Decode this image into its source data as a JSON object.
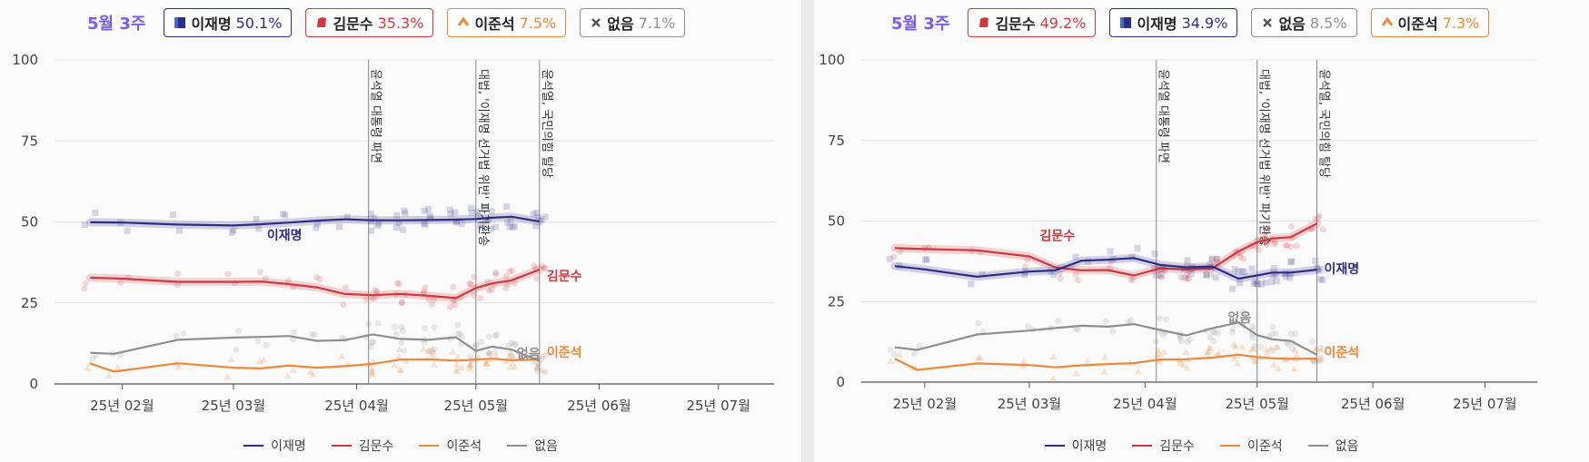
{
  "colors": {
    "lee": "#2b2e86",
    "kim": "#d2373e",
    "lee_js": "#ee8838",
    "none": "#8f8f8f",
    "week": "#7a5cf0"
  },
  "legend": [
    {
      "label": "이재명",
      "key": "lee"
    },
    {
      "label": "김문수",
      "key": "kim"
    },
    {
      "label": "이준석",
      "key": "lee_js"
    },
    {
      "label": "없음",
      "key": "none"
    }
  ],
  "panels": [
    {
      "week_label": "5월 3주",
      "badges": [
        {
          "name": "이재명",
          "value": "50.1%",
          "key": "lee",
          "icon": "lee-party-icon"
        },
        {
          "name": "김문수",
          "value": "35.3%",
          "key": "kim",
          "icon": "kim-party-icon"
        },
        {
          "name": "이준석",
          "value": "7.5%",
          "key": "lee_js",
          "icon": "reform-party-icon"
        },
        {
          "name": "없음",
          "value": "7.1%",
          "key": "none",
          "icon": "none-cross-icon"
        }
      ]
    },
    {
      "week_label": "5월 3주",
      "badges": [
        {
          "name": "김문수",
          "value": "49.2%",
          "key": "kim",
          "icon": "kim-party-icon"
        },
        {
          "name": "이재명",
          "value": "34.9%",
          "key": "lee",
          "icon": "lee-party-icon"
        },
        {
          "name": "없음",
          "value": "8.5%",
          "key": "none",
          "icon": "none-cross-icon"
        },
        {
          "name": "이준석",
          "value": "7.3%",
          "key": "lee_js",
          "icon": "reform-party-icon"
        }
      ]
    }
  ],
  "chart_data": [
    {
      "type": "line",
      "x_range": [
        "2025-01-15",
        "2025-07-15"
      ],
      "x_ticks": [
        {
          "date": "2025-02-01",
          "label": "25년 02월"
        },
        {
          "date": "2025-03-01",
          "label": "25년 03월"
        },
        {
          "date": "2025-04-01",
          "label": "25년 04월"
        },
        {
          "date": "2025-05-01",
          "label": "25년 05월"
        },
        {
          "date": "2025-06-01",
          "label": "25년 06월"
        },
        {
          "date": "2025-07-01",
          "label": "25년 07월"
        }
      ],
      "y_ticks": [
        0,
        25,
        50,
        75,
        100
      ],
      "ylim": [
        0,
        100
      ],
      "grid": true,
      "legend_position": "bottom",
      "events": [
        {
          "date": "2025-04-04",
          "label": "윤석열 대통령 파면"
        },
        {
          "date": "2025-05-01",
          "label": "대법, '이재명 선거법 위반' 파기환송"
        },
        {
          "date": "2025-05-17",
          "label": "윤석열, 국민의힘 탈당"
        }
      ],
      "series": [
        {
          "name": "이재명",
          "key": "lee",
          "end_label": "이재명",
          "dates": [
            "2025-01-24",
            "2025-02-01",
            "2025-02-15",
            "2025-03-01",
            "2025-03-08",
            "2025-03-15",
            "2025-03-22",
            "2025-03-29",
            "2025-04-05",
            "2025-04-12",
            "2025-04-19",
            "2025-04-26",
            "2025-05-01",
            "2025-05-05",
            "2025-05-10",
            "2025-05-17"
          ],
          "values": [
            49.9,
            49.8,
            49.2,
            48.9,
            49.3,
            49.8,
            50.4,
            50.8,
            50.5,
            50.5,
            50.6,
            50.7,
            50.9,
            51.3,
            51.6,
            50.1
          ]
        },
        {
          "name": "김문수",
          "key": "kim",
          "end_label": "김문수",
          "dates": [
            "2025-01-24",
            "2025-02-01",
            "2025-02-15",
            "2025-03-01",
            "2025-03-08",
            "2025-03-15",
            "2025-03-22",
            "2025-03-29",
            "2025-04-05",
            "2025-04-12",
            "2025-04-19",
            "2025-04-26",
            "2025-05-01",
            "2025-05-05",
            "2025-05-10",
            "2025-05-17"
          ],
          "values": [
            32.8,
            32.5,
            31.5,
            31.5,
            31.6,
            30.8,
            29.8,
            27.8,
            27.4,
            27.8,
            27.2,
            26.5,
            29.6,
            31.0,
            32.0,
            35.3
          ]
        },
        {
          "name": "이준석",
          "key": "lee_js",
          "end_label": "이준석",
          "dates": [
            "2025-01-24",
            "2025-01-30",
            "2025-02-15",
            "2025-03-01",
            "2025-03-08",
            "2025-03-15",
            "2025-03-22",
            "2025-03-29",
            "2025-04-05",
            "2025-04-12",
            "2025-04-19",
            "2025-04-26",
            "2025-05-01",
            "2025-05-05",
            "2025-05-10",
            "2025-05-17"
          ],
          "values": [
            6.3,
            3.8,
            6.4,
            5.0,
            4.8,
            5.7,
            5.0,
            5.5,
            6.2,
            7.5,
            7.6,
            7.2,
            7.5,
            7.8,
            7.3,
            7.5
          ]
        },
        {
          "name": "없음",
          "key": "none",
          "end_label": "없음",
          "dates": [
            "2025-01-24",
            "2025-01-30",
            "2025-02-15",
            "2025-03-01",
            "2025-03-08",
            "2025-03-15",
            "2025-03-22",
            "2025-03-29",
            "2025-04-05",
            "2025-04-12",
            "2025-04-19",
            "2025-04-26",
            "2025-05-01",
            "2025-05-05",
            "2025-05-10",
            "2025-05-17"
          ],
          "values": [
            9.6,
            9.3,
            13.6,
            14.3,
            14.5,
            14.8,
            13.3,
            13.5,
            15.3,
            13.9,
            13.6,
            14.4,
            10.2,
            11.5,
            10.6,
            7.1
          ]
        }
      ]
    },
    {
      "type": "line",
      "x_range": [
        "2025-01-15",
        "2025-07-15"
      ],
      "x_ticks": [
        {
          "date": "2025-02-01",
          "label": "25년 02월"
        },
        {
          "date": "2025-03-01",
          "label": "25년 03월"
        },
        {
          "date": "2025-04-01",
          "label": "25년 04월"
        },
        {
          "date": "2025-05-01",
          "label": "25년 05월"
        },
        {
          "date": "2025-06-01",
          "label": "25년 06월"
        },
        {
          "date": "2025-07-01",
          "label": "25년 07월"
        }
      ],
      "y_ticks": [
        0,
        25,
        50,
        75,
        100
      ],
      "ylim": [
        0,
        100
      ],
      "grid": true,
      "legend_position": "bottom",
      "events": [
        {
          "date": "2025-04-04",
          "label": "윤석열 대통령 파면"
        },
        {
          "date": "2025-05-01",
          "label": "대법, '이재명 선거법 위반' 파기환송"
        },
        {
          "date": "2025-05-17",
          "label": "윤석열, 국민의힘 탈당"
        }
      ],
      "series": [
        {
          "name": "김문수",
          "key": "kim",
          "end_label": "김문수",
          "dates": [
            "2025-01-24",
            "2025-02-01",
            "2025-02-15",
            "2025-03-01",
            "2025-03-08",
            "2025-03-15",
            "2025-03-22",
            "2025-03-29",
            "2025-04-05",
            "2025-04-12",
            "2025-04-19",
            "2025-04-26",
            "2025-05-01",
            "2025-05-05",
            "2025-05-10",
            "2025-05-17"
          ],
          "values": [
            41.6,
            41.3,
            40.9,
            39.0,
            35.6,
            34.7,
            34.8,
            33.1,
            35.3,
            35.0,
            35.3,
            40.6,
            43.4,
            44.6,
            45.0,
            49.2
          ]
        },
        {
          "name": "이재명",
          "key": "lee",
          "end_label": "이재명",
          "dates": [
            "2025-01-24",
            "2025-02-01",
            "2025-02-15",
            "2025-03-01",
            "2025-03-08",
            "2025-03-15",
            "2025-03-22",
            "2025-03-29",
            "2025-04-05",
            "2025-04-12",
            "2025-04-19",
            "2025-04-26",
            "2025-05-01",
            "2025-05-05",
            "2025-05-10",
            "2025-05-17"
          ],
          "values": [
            36.0,
            35.0,
            32.7,
            34.3,
            34.7,
            37.7,
            38.0,
            38.5,
            36.4,
            35.6,
            35.9,
            32.1,
            33.1,
            34.0,
            34.0,
            34.9
          ]
        },
        {
          "name": "없음",
          "key": "none",
          "end_label": "없음",
          "dates": [
            "2025-01-24",
            "2025-01-30",
            "2025-02-15",
            "2025-03-01",
            "2025-03-08",
            "2025-03-15",
            "2025-03-22",
            "2025-03-29",
            "2025-04-05",
            "2025-04-12",
            "2025-04-19",
            "2025-04-26",
            "2025-05-01",
            "2025-05-05",
            "2025-05-10",
            "2025-05-17"
          ],
          "values": [
            10.8,
            10.0,
            14.8,
            16.0,
            16.8,
            17.5,
            17.2,
            18.0,
            16.2,
            14.5,
            16.7,
            18.5,
            14.6,
            13.3,
            12.8,
            8.5
          ]
        },
        {
          "name": "이준석",
          "key": "lee_js",
          "end_label": "이준석",
          "dates": [
            "2025-01-24",
            "2025-01-30",
            "2025-02-15",
            "2025-03-01",
            "2025-03-08",
            "2025-03-15",
            "2025-03-22",
            "2025-03-29",
            "2025-04-05",
            "2025-04-12",
            "2025-04-19",
            "2025-04-26",
            "2025-05-01",
            "2025-05-05",
            "2025-05-10",
            "2025-05-17"
          ],
          "values": [
            7.2,
            3.8,
            5.8,
            5.3,
            4.6,
            5.2,
            5.6,
            5.9,
            7.0,
            7.1,
            7.6,
            8.5,
            7.8,
            7.4,
            7.2,
            7.3
          ]
        }
      ]
    }
  ]
}
